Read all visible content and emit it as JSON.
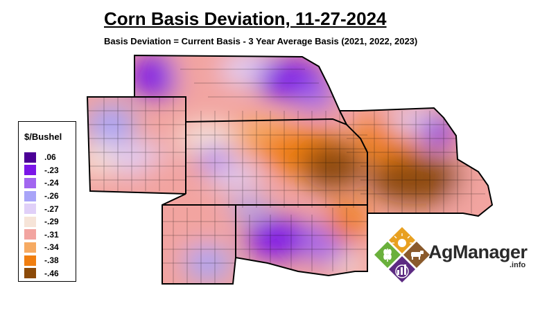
{
  "title": "Corn Basis Deviation, 11-27-2024",
  "subtitle": "Basis Deviation = Current Basis - 3 Year Average Basis (2021, 2022, 2023)",
  "legend": {
    "title": "$/Bushel",
    "items": [
      {
        "label": ".06",
        "color": "#4b0096"
      },
      {
        "label": "-.23",
        "color": "#7b16e8"
      },
      {
        "label": "-.24",
        "color": "#a266f0"
      },
      {
        "label": "-.26",
        "color": "#a8a4f8"
      },
      {
        "label": "-.27",
        "color": "#e0d0f8"
      },
      {
        "label": "-.29",
        "color": "#f6e4d8"
      },
      {
        "label": "-.31",
        "color": "#f2a4a0"
      },
      {
        "label": "-.34",
        "color": "#f6aa62"
      },
      {
        "label": "-.38",
        "color": "#f07e10"
      },
      {
        "label": "-.46",
        "color": "#8c4a08"
      }
    ]
  },
  "logo": {
    "brand": "AgManager",
    "suffix": ".info",
    "colors": {
      "orange": "#e8a020",
      "green": "#6ab03c",
      "brown": "#8a5a2c",
      "purple": "#5c2a82"
    },
    "icons": [
      "sun-icon",
      "wheat-icon",
      "cow-icon",
      "chart-icon"
    ]
  }
}
